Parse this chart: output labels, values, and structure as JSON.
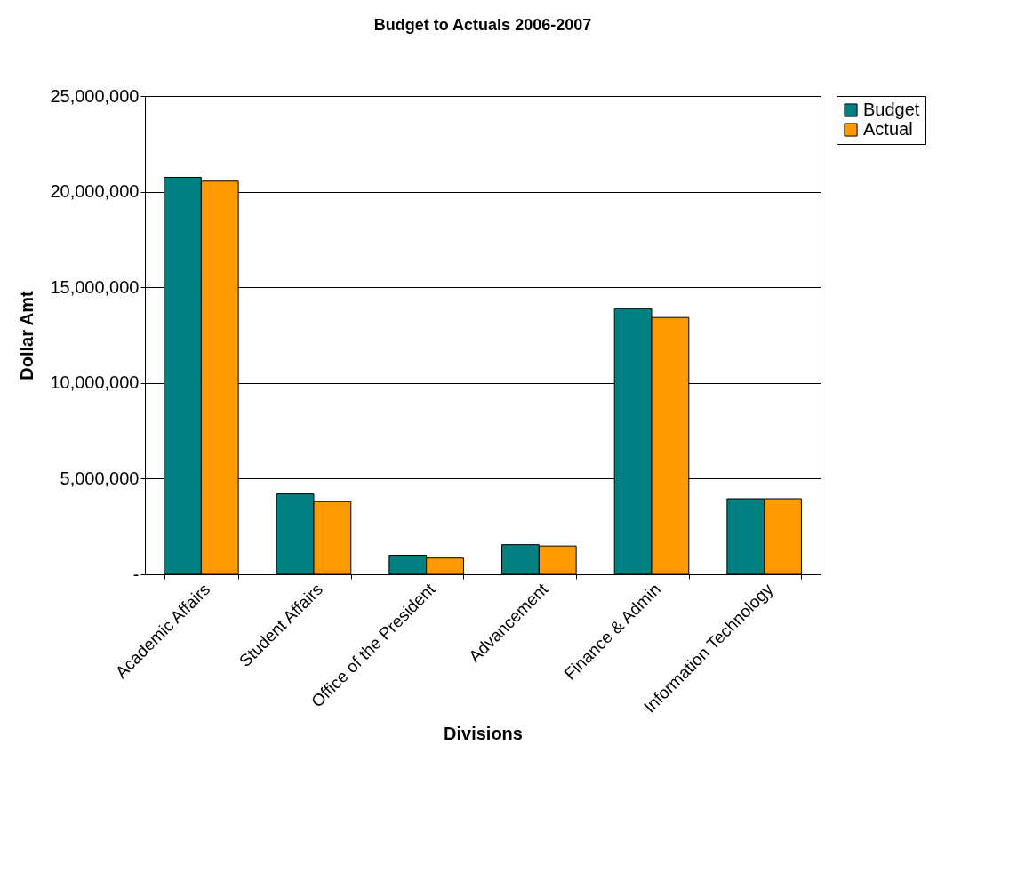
{
  "chart_data": {
    "type": "bar",
    "title": "Budget to Actuals 2006-2007",
    "xlabel": "Divisions",
    "ylabel": "Dollar Amt",
    "categories": [
      "Academic Affairs",
      "Student Affairs",
      "Office of the President",
      "Advancement",
      "Finance & Admin",
      "Information Technology"
    ],
    "series": [
      {
        "name": "Budget",
        "color": "#008080",
        "values": [
          20750000,
          4200000,
          1000000,
          1550000,
          13880000,
          3950000
        ]
      },
      {
        "name": "Actual",
        "color": "#ff9900",
        "values": [
          20550000,
          3800000,
          850000,
          1480000,
          13420000,
          3950000
        ]
      }
    ],
    "ylim": [
      0,
      25000000
    ],
    "yticks": [
      {
        "value": 0,
        "label": "-"
      },
      {
        "value": 5000000,
        "label": "5,000,000"
      },
      {
        "value": 10000000,
        "label": "10,000,000"
      },
      {
        "value": 15000000,
        "label": "15,000,000"
      },
      {
        "value": 20000000,
        "label": "20,000,000"
      },
      {
        "value": 25000000,
        "label": "25,000,000"
      }
    ],
    "grid": "y",
    "legend": "right"
  }
}
